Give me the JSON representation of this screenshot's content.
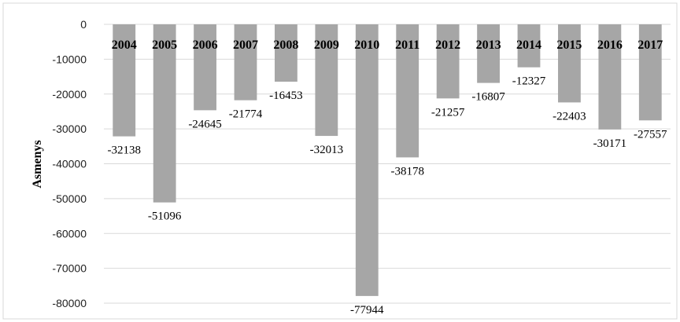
{
  "chart_data": {
    "type": "bar",
    "title": "",
    "xlabel": "",
    "ylabel": "Asmenys",
    "categories": [
      "2004",
      "2005",
      "2006",
      "2007",
      "2008",
      "2009",
      "2010",
      "2011",
      "2012",
      "2013",
      "2014",
      "2015",
      "2016",
      "2017"
    ],
    "values": [
      -32138,
      -51096,
      -24645,
      -21774,
      -16453,
      -32013,
      -77944,
      -38178,
      -21257,
      -16807,
      -12327,
      -22403,
      -30171,
      -27557
    ],
    "data_labels": [
      "-32138",
      "-51096",
      "-24645",
      "-21774",
      "-16453",
      "-32013",
      "-77944",
      "-38178",
      "-21257",
      "-16807",
      "-12327",
      "-22403",
      "-30171",
      "-27557"
    ],
    "yticks": [
      0,
      -10000,
      -20000,
      -30000,
      -40000,
      -50000,
      -60000,
      -70000,
      -80000
    ],
    "ytick_labels": [
      "0",
      "-10000",
      "-20000",
      "-30000",
      "-40000",
      "-50000",
      "-60000",
      "-70000",
      "-80000"
    ],
    "ylim": [
      -80000,
      0
    ],
    "grid": true,
    "legend": "none",
    "colors": {
      "bar": "#a6a6a6",
      "grid": "#d9d9d9"
    }
  }
}
